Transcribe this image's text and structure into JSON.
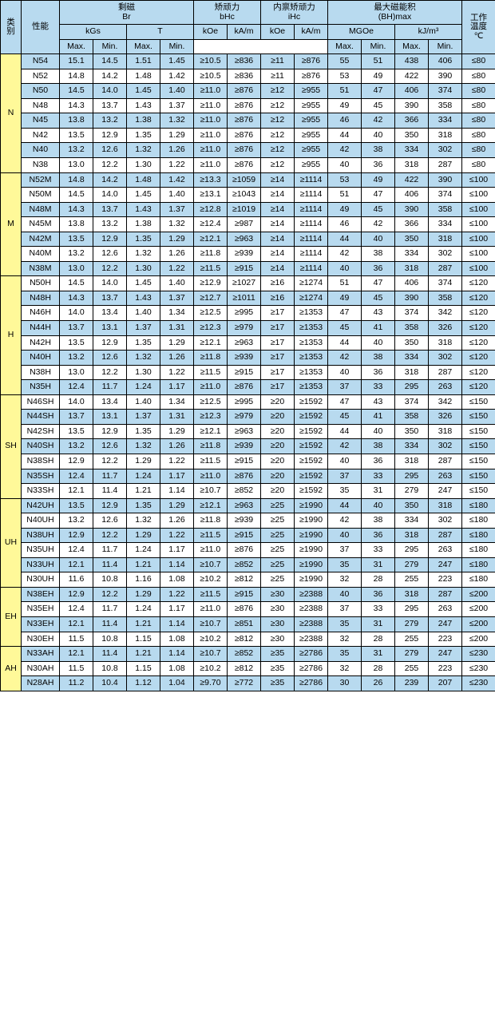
{
  "headers": {
    "category": "类\n别",
    "grade": "性能",
    "br": "剩磁\nBr",
    "br_kgs": "kGs",
    "br_t": "T",
    "bhc": "矫顽力\nbHc",
    "ihc": "内禀矫顽力\niHc",
    "bhmax": "最大磁能积\n(BH)max",
    "temp": "工作\n温度\n℃",
    "koe": "kOe",
    "kam": "kA/m",
    "mgoe": "MGOe",
    "kjm3": "kJ/m³",
    "max": "Max.",
    "min": "Min."
  },
  "cols_widths": {
    "data_col_count": 13
  },
  "groups": [
    {
      "cat": "N",
      "rows": [
        {
          "g": "N54",
          "d": [
            "15.1",
            "14.5",
            "1.51",
            "1.45",
            "≥10.5",
            "≥836",
            "≥11",
            "≥876",
            "55",
            "51",
            "438",
            "406",
            "≤80"
          ],
          "alt": true
        },
        {
          "g": "N52",
          "d": [
            "14.8",
            "14.2",
            "1.48",
            "1.42",
            "≥10.5",
            "≥836",
            "≥11",
            "≥876",
            "53",
            "49",
            "422",
            "390",
            "≤80"
          ],
          "alt": false
        },
        {
          "g": "N50",
          "d": [
            "14.5",
            "14.0",
            "1.45",
            "1.40",
            "≥11.0",
            "≥876",
            "≥12",
            "≥955",
            "51",
            "47",
            "406",
            "374",
            "≤80"
          ],
          "alt": true
        },
        {
          "g": "N48",
          "d": [
            "14.3",
            "13.7",
            "1.43",
            "1.37",
            "≥11.0",
            "≥876",
            "≥12",
            "≥955",
            "49",
            "45",
            "390",
            "358",
            "≤80"
          ],
          "alt": false
        },
        {
          "g": "N45",
          "d": [
            "13.8",
            "13.2",
            "1.38",
            "1.32",
            "≥11.0",
            "≥876",
            "≥12",
            "≥955",
            "46",
            "42",
            "366",
            "334",
            "≤80"
          ],
          "alt": true
        },
        {
          "g": "N42",
          "d": [
            "13.5",
            "12.9",
            "1.35",
            "1.29",
            "≥11.0",
            "≥876",
            "≥12",
            "≥955",
            "44",
            "40",
            "350",
            "318",
            "≤80"
          ],
          "alt": false
        },
        {
          "g": "N40",
          "d": [
            "13.2",
            "12.6",
            "1.32",
            "1.26",
            "≥11.0",
            "≥876",
            "≥12",
            "≥955",
            "42",
            "38",
            "334",
            "302",
            "≤80"
          ],
          "alt": true
        },
        {
          "g": "N38",
          "d": [
            "13.0",
            "12.2",
            "1.30",
            "1.22",
            "≥11.0",
            "≥876",
            "≥12",
            "≥955",
            "40",
            "36",
            "318",
            "287",
            "≤80"
          ],
          "alt": false
        }
      ]
    },
    {
      "cat": "M",
      "rows": [
        {
          "g": "N52M",
          "d": [
            "14.8",
            "14.2",
            "1.48",
            "1.42",
            "≥13.3",
            "≥1059",
            "≥14",
            "≥1114",
            "53",
            "49",
            "422",
            "390",
            "≤100"
          ],
          "alt": true
        },
        {
          "g": "N50M",
          "d": [
            "14.5",
            "14.0",
            "1.45",
            "1.40",
            "≥13.1",
            "≥1043",
            "≥14",
            "≥1114",
            "51",
            "47",
            "406",
            "374",
            "≤100"
          ],
          "alt": false
        },
        {
          "g": "N48M",
          "d": [
            "14.3",
            "13.7",
            "1.43",
            "1.37",
            "≥12.8",
            "≥1019",
            "≥14",
            "≥1114",
            "49",
            "45",
            "390",
            "358",
            "≤100"
          ],
          "alt": true
        },
        {
          "g": "N45M",
          "d": [
            "13.8",
            "13.2",
            "1.38",
            "1.32",
            "≥12.4",
            "≥987",
            "≥14",
            "≥1114",
            "46",
            "42",
            "366",
            "334",
            "≤100"
          ],
          "alt": false
        },
        {
          "g": "N42M",
          "d": [
            "13.5",
            "12.9",
            "1.35",
            "1.29",
            "≥12.1",
            "≥963",
            "≥14",
            "≥1114",
            "44",
            "40",
            "350",
            "318",
            "≤100"
          ],
          "alt": true
        },
        {
          "g": "N40M",
          "d": [
            "13.2",
            "12.6",
            "1.32",
            "1.26",
            "≥11.8",
            "≥939",
            "≥14",
            "≥1114",
            "42",
            "38",
            "334",
            "302",
            "≤100"
          ],
          "alt": false
        },
        {
          "g": "N38M",
          "d": [
            "13.0",
            "12.2",
            "1.30",
            "1.22",
            "≥11.5",
            "≥915",
            "≥14",
            "≥1114",
            "40",
            "36",
            "318",
            "287",
            "≤100"
          ],
          "alt": true
        }
      ]
    },
    {
      "cat": "H",
      "rows": [
        {
          "g": "N50H",
          "d": [
            "14.5",
            "14.0",
            "1.45",
            "1.40",
            "≥12.9",
            "≥1027",
            "≥16",
            "≥1274",
            "51",
            "47",
            "406",
            "374",
            "≤120"
          ],
          "alt": false
        },
        {
          "g": "N48H",
          "d": [
            "14.3",
            "13.7",
            "1.43",
            "1.37",
            "≥12.7",
            "≥1011",
            "≥16",
            "≥1274",
            "49",
            "45",
            "390",
            "358",
            "≤120"
          ],
          "alt": true
        },
        {
          "g": "N46H",
          "d": [
            "14.0",
            "13.4",
            "1.40",
            "1.34",
            "≥12.5",
            "≥995",
            "≥17",
            "≥1353",
            "47",
            "43",
            "374",
            "342",
            "≤120"
          ],
          "alt": false
        },
        {
          "g": "N44H",
          "d": [
            "13.7",
            "13.1",
            "1.37",
            "1.31",
            "≥12.3",
            "≥979",
            "≥17",
            "≥1353",
            "45",
            "41",
            "358",
            "326",
            "≤120"
          ],
          "alt": true
        },
        {
          "g": "N42H",
          "d": [
            "13.5",
            "12.9",
            "1.35",
            "1.29",
            "≥12.1",
            "≥963",
            "≥17",
            "≥1353",
            "44",
            "40",
            "350",
            "318",
            "≤120"
          ],
          "alt": false
        },
        {
          "g": "N40H",
          "d": [
            "13.2",
            "12.6",
            "1.32",
            "1.26",
            "≥11.8",
            "≥939",
            "≥17",
            "≥1353",
            "42",
            "38",
            "334",
            "302",
            "≤120"
          ],
          "alt": true
        },
        {
          "g": "N38H",
          "d": [
            "13.0",
            "12.2",
            "1.30",
            "1.22",
            "≥11.5",
            "≥915",
            "≥17",
            "≥1353",
            "40",
            "36",
            "318",
            "287",
            "≤120"
          ],
          "alt": false
        },
        {
          "g": "N35H",
          "d": [
            "12.4",
            "11.7",
            "1.24",
            "1.17",
            "≥11.0",
            "≥876",
            "≥17",
            "≥1353",
            "37",
            "33",
            "295",
            "263",
            "≤120"
          ],
          "alt": true
        }
      ]
    },
    {
      "cat": "SH",
      "rows": [
        {
          "g": "N46SH",
          "d": [
            "14.0",
            "13.4",
            "1.40",
            "1.34",
            "≥12.5",
            "≥995",
            "≥20",
            "≥1592",
            "47",
            "43",
            "374",
            "342",
            "≤150"
          ],
          "alt": false
        },
        {
          "g": "N44SH",
          "d": [
            "13.7",
            "13.1",
            "1.37",
            "1.31",
            "≥12.3",
            "≥979",
            "≥20",
            "≥1592",
            "45",
            "41",
            "358",
            "326",
            "≤150"
          ],
          "alt": true
        },
        {
          "g": "N42SH",
          "d": [
            "13.5",
            "12.9",
            "1.35",
            "1.29",
            "≥12.1",
            "≥963",
            "≥20",
            "≥1592",
            "44",
            "40",
            "350",
            "318",
            "≤150"
          ],
          "alt": false
        },
        {
          "g": "N40SH",
          "d": [
            "13.2",
            "12.6",
            "1.32",
            "1.26",
            "≥11.8",
            "≥939",
            "≥20",
            "≥1592",
            "42",
            "38",
            "334",
            "302",
            "≤150"
          ],
          "alt": true
        },
        {
          "g": "N38SH",
          "d": [
            "12.9",
            "12.2",
            "1.29",
            "1.22",
            "≥11.5",
            "≥915",
            "≥20",
            "≥1592",
            "40",
            "36",
            "318",
            "287",
            "≤150"
          ],
          "alt": false
        },
        {
          "g": "N35SH",
          "d": [
            "12.4",
            "11.7",
            "1.24",
            "1.17",
            "≥11.0",
            "≥876",
            "≥20",
            "≥1592",
            "37",
            "33",
            "295",
            "263",
            "≤150"
          ],
          "alt": true
        },
        {
          "g": "N33SH",
          "d": [
            "12.1",
            "11.4",
            "1.21",
            "1.14",
            "≥10.7",
            "≥852",
            "≥20",
            "≥1592",
            "35",
            "31",
            "279",
            "247",
            "≤150"
          ],
          "alt": false
        }
      ]
    },
    {
      "cat": "UH",
      "rows": [
        {
          "g": "N42UH",
          "d": [
            "13.5",
            "12.9",
            "1.35",
            "1.29",
            "≥12.1",
            "≥963",
            "≥25",
            "≥1990",
            "44",
            "40",
            "350",
            "318",
            "≤180"
          ],
          "alt": true
        },
        {
          "g": "N40UH",
          "d": [
            "13.2",
            "12.6",
            "1.32",
            "1.26",
            "≥11.8",
            "≥939",
            "≥25",
            "≥1990",
            "42",
            "38",
            "334",
            "302",
            "≤180"
          ],
          "alt": false
        },
        {
          "g": "N38UH",
          "d": [
            "12.9",
            "12.2",
            "1.29",
            "1.22",
            "≥11.5",
            "≥915",
            "≥25",
            "≥1990",
            "40",
            "36",
            "318",
            "287",
            "≤180"
          ],
          "alt": true
        },
        {
          "g": "N35UH",
          "d": [
            "12.4",
            "11.7",
            "1.24",
            "1.17",
            "≥11.0",
            "≥876",
            "≥25",
            "≥1990",
            "37",
            "33",
            "295",
            "263",
            "≤180"
          ],
          "alt": false
        },
        {
          "g": "N33UH",
          "d": [
            "12.1",
            "11.4",
            "1.21",
            "1.14",
            "≥10.7",
            "≥852",
            "≥25",
            "≥1990",
            "35",
            "31",
            "279",
            "247",
            "≤180"
          ],
          "alt": true
        },
        {
          "g": "N30UH",
          "d": [
            "11.6",
            "10.8",
            "1.16",
            "1.08",
            "≥10.2",
            "≥812",
            "≥25",
            "≥1990",
            "32",
            "28",
            "255",
            "223",
            "≤180"
          ],
          "alt": false
        }
      ]
    },
    {
      "cat": "EH",
      "rows": [
        {
          "g": "N38EH",
          "d": [
            "12.9",
            "12.2",
            "1.29",
            "1.22",
            "≥11.5",
            "≥915",
            "≥30",
            "≥2388",
            "40",
            "36",
            "318",
            "287",
            "≤200"
          ],
          "alt": true
        },
        {
          "g": "N35EH",
          "d": [
            "12.4",
            "11.7",
            "1.24",
            "1.17",
            "≥11.0",
            "≥876",
            "≥30",
            "≥2388",
            "37",
            "33",
            "295",
            "263",
            "≤200"
          ],
          "alt": false
        },
        {
          "g": "N33EH",
          "d": [
            "12.1",
            "11.4",
            "1.21",
            "1.14",
            "≥10.7",
            "≥851",
            "≥30",
            "≥2388",
            "35",
            "31",
            "279",
            "247",
            "≤200"
          ],
          "alt": true
        },
        {
          "g": "N30EH",
          "d": [
            "11.5",
            "10.8",
            "1.15",
            "1.08",
            "≥10.2",
            "≥812",
            "≥30",
            "≥2388",
            "32",
            "28",
            "255",
            "223",
            "≤200"
          ],
          "alt": false
        }
      ]
    },
    {
      "cat": "AH",
      "rows": [
        {
          "g": "N33AH",
          "d": [
            "12.1",
            "11.4",
            "1.21",
            "1.14",
            "≥10.7",
            "≥852",
            "≥35",
            "≥2786",
            "35",
            "31",
            "279",
            "247",
            "≤230"
          ],
          "alt": true
        },
        {
          "g": "N30AH",
          "d": [
            "11.5",
            "10.8",
            "1.15",
            "1.08",
            "≥10.2",
            "≥812",
            "≥35",
            "≥2786",
            "32",
            "28",
            "255",
            "223",
            "≤230"
          ],
          "alt": false
        },
        {
          "g": "N28AH",
          "d": [
            "11.2",
            "10.4",
            "1.12",
            "1.04",
            "≥9.70",
            "≥772",
            "≥35",
            "≥2786",
            "30",
            "26",
            "239",
            "207",
            "≤230"
          ],
          "alt": true
        }
      ]
    }
  ]
}
